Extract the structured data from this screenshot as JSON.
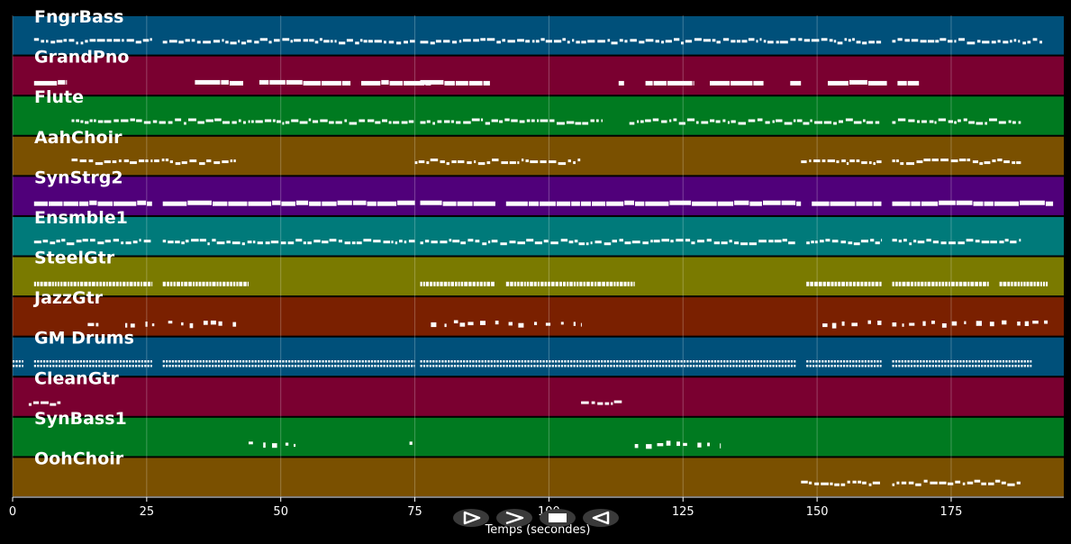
{
  "chart_data": {
    "type": "piano-roll",
    "xlabel": "Temps (secondes)",
    "xlim": [
      0,
      196
    ],
    "xticks": [
      0,
      25,
      50,
      75,
      100,
      125,
      150,
      175
    ],
    "grid": true,
    "tracks": [
      {
        "name": "FngrBass",
        "color": "#00507a",
        "style": "dashes",
        "segments": [
          [
            4,
            26
          ],
          [
            28,
            75
          ],
          [
            76,
            162
          ],
          [
            164,
            192
          ]
        ]
      },
      {
        "name": "GrandPno",
        "color": "#7a0030",
        "style": "blocks",
        "segments": [
          [
            4,
            10
          ],
          [
            34,
            43
          ],
          [
            46,
            63
          ],
          [
            65,
            78
          ],
          [
            76,
            89
          ],
          [
            113,
            114
          ],
          [
            118,
            127
          ],
          [
            130,
            140
          ],
          [
            145,
            147
          ],
          [
            152,
            163
          ],
          [
            165,
            169
          ]
        ]
      },
      {
        "name": "Flute",
        "color": "#007a20",
        "style": "dashes",
        "segments": [
          [
            11,
            75
          ],
          [
            76,
            110
          ],
          [
            115,
            162
          ],
          [
            164,
            188
          ]
        ]
      },
      {
        "name": "AahChoir",
        "color": "#7a5000",
        "style": "dashes",
        "segments": [
          [
            11,
            42
          ],
          [
            75,
            106
          ],
          [
            147,
            162
          ],
          [
            164,
            188
          ]
        ]
      },
      {
        "name": "SynStrg2",
        "color": "#50007a",
        "style": "blocks",
        "segments": [
          [
            4,
            26
          ],
          [
            28,
            75
          ],
          [
            76,
            90
          ],
          [
            92,
            147
          ],
          [
            149,
            162
          ],
          [
            164,
            194
          ]
        ]
      },
      {
        "name": "Ensmble1",
        "color": "#007a7a",
        "style": "dashes",
        "segments": [
          [
            4,
            26
          ],
          [
            28,
            75
          ],
          [
            76,
            146
          ],
          [
            148,
            162
          ],
          [
            164,
            188
          ]
        ]
      },
      {
        "name": "SteelGtr",
        "color": "#7a7a00",
        "style": "dense",
        "segments": [
          [
            4,
            26
          ],
          [
            28,
            44
          ],
          [
            76,
            90
          ],
          [
            92,
            116
          ],
          [
            148,
            162
          ],
          [
            164,
            182
          ],
          [
            184,
            193
          ]
        ]
      },
      {
        "name": "JazzGtr",
        "color": "#7a2000",
        "style": "sparse",
        "segments": [
          [
            14,
            16
          ],
          [
            21,
            27
          ],
          [
            29,
            43
          ],
          [
            78,
            106
          ],
          [
            151,
            162
          ],
          [
            164,
            193
          ]
        ]
      },
      {
        "name": "GM Drums",
        "color": "#00507a",
        "style": "drums",
        "segments": [
          [
            0,
            2
          ],
          [
            4,
            26
          ],
          [
            28,
            75
          ],
          [
            76,
            146
          ],
          [
            148,
            162
          ],
          [
            164,
            190
          ]
        ]
      },
      {
        "name": "CleanGtr",
        "color": "#7a0030",
        "style": "dashes",
        "segments": [
          [
            3,
            9
          ],
          [
            106,
            114
          ]
        ]
      },
      {
        "name": "SynBass1",
        "color": "#007a20",
        "style": "sparse",
        "segments": [
          [
            44,
            53
          ],
          [
            74,
            75
          ],
          [
            116,
            132
          ]
        ]
      },
      {
        "name": "OohChoir",
        "color": "#7a5000",
        "style": "dashes",
        "segments": [
          [
            147,
            162
          ],
          [
            164,
            188
          ]
        ]
      }
    ]
  },
  "controls": {
    "play_icon": "play-outline-icon",
    "forward_icon": "fast-forward-icon",
    "stop_icon": "stop-icon",
    "back_icon": "rewind-icon"
  }
}
